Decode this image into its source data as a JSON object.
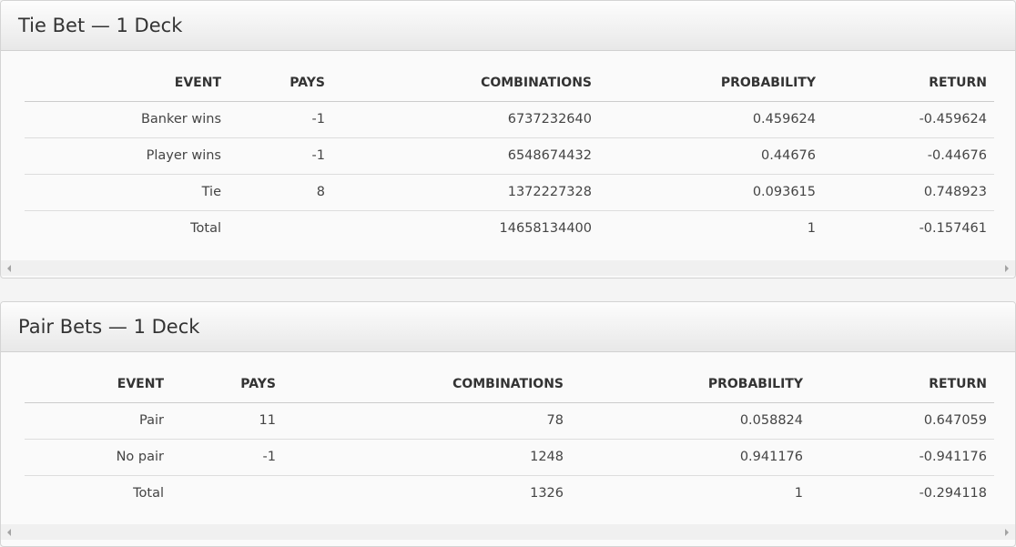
{
  "tables": [
    {
      "title": "Tie Bet — 1 Deck",
      "headers": [
        "EVENT",
        "PAYS",
        "COMBINATIONS",
        "PROBABILITY",
        "RETURN"
      ],
      "rows": [
        [
          "Banker wins",
          "-1",
          "6737232640",
          "0.459624",
          "-0.459624"
        ],
        [
          "Player wins",
          "-1",
          "6548674432",
          "0.44676",
          "-0.44676"
        ],
        [
          "Tie",
          "8",
          "1372227328",
          "0.093615",
          "0.748923"
        ],
        [
          "Total",
          "",
          "14658134400",
          "1",
          "-0.157461"
        ]
      ]
    },
    {
      "title": "Pair Bets — 1 Deck",
      "headers": [
        "EVENT",
        "PAYS",
        "COMBINATIONS",
        "PROBABILITY",
        "RETURN"
      ],
      "rows": [
        [
          "Pair",
          "11",
          "78",
          "0.058824",
          "0.647059"
        ],
        [
          "No pair",
          "-1",
          "1248",
          "0.941176",
          "-0.941176"
        ],
        [
          "Total",
          "",
          "1326",
          "1",
          "-0.294118"
        ]
      ]
    }
  ]
}
